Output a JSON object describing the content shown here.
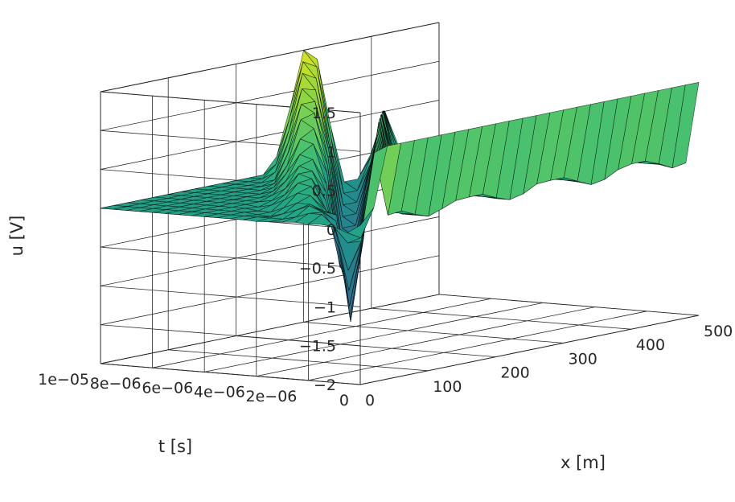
{
  "chart_data": {
    "type": "surface",
    "colormap": "viridis",
    "grid": true,
    "xlabel": "x [m]",
    "ylabel": "t [s]",
    "zlabel": "u [V]",
    "xlim": [
      0,
      500
    ],
    "ylim": [
      0,
      1e-05
    ],
    "zlim": [
      -2,
      1.5
    ],
    "x_ticks": [
      {
        "value": 0,
        "label": "0"
      },
      {
        "value": 100,
        "label": "100"
      },
      {
        "value": 200,
        "label": "200"
      },
      {
        "value": 300,
        "label": "300"
      },
      {
        "value": 400,
        "label": "400"
      },
      {
        "value": 500,
        "label": "500"
      }
    ],
    "y_ticks": [
      {
        "value": 0,
        "label": "0"
      },
      {
        "value": 2e-06,
        "label": "2e−06"
      },
      {
        "value": 4e-06,
        "label": "4e−06"
      },
      {
        "value": 6e-06,
        "label": "6e−06"
      },
      {
        "value": 8e-06,
        "label": "8e−06"
      },
      {
        "value": 1e-05,
        "label": "1e−05"
      }
    ],
    "z_ticks": [
      {
        "value": -2,
        "label": "−2"
      },
      {
        "value": -1.5,
        "label": "−1.5"
      },
      {
        "value": -1,
        "label": "−1"
      },
      {
        "value": -0.5,
        "label": "−0.5"
      },
      {
        "value": 0,
        "label": "0"
      },
      {
        "value": 0.5,
        "label": "0.5"
      },
      {
        "value": 1,
        "label": "1"
      },
      {
        "value": 1.5,
        "label": "1.5"
      }
    ],
    "surface": {
      "x": [
        0,
        20,
        40,
        60,
        80,
        100,
        120,
        140,
        160,
        180,
        200,
        220,
        240,
        260,
        280,
        300,
        320,
        340,
        360,
        380,
        400,
        420,
        440,
        460,
        480,
        500
      ],
      "t": [
        0,
        5e-07,
        1e-06,
        1.5e-06,
        2e-06,
        2.5e-06,
        3e-06,
        3.5e-06,
        4e-06,
        4.5e-06,
        5e-06,
        5.5e-06,
        6e-06,
        6.5e-06,
        7e-06,
        7.5e-06,
        8e-06,
        8.5e-06,
        9e-06,
        9.5e-06,
        1e-05
      ],
      "u_rows_by_t": [
        [
          0.05,
          0.24,
          1.0,
          1.0,
          1.0,
          1.0,
          1.0,
          1.0,
          1.0,
          1.0,
          1.0,
          1.0,
          1.0,
          1.0,
          1.0,
          1.0,
          1.0,
          1.0,
          1.0,
          1.0,
          1.0,
          1.0,
          1.0,
          1.0,
          1.0,
          1.0
        ],
        [
          -0.06,
          -0.16,
          0.9,
          0.06,
          0.08,
          0.0,
          -0.06,
          0.0,
          0.07,
          0.08,
          0.08,
          0.0,
          -0.06,
          -0.02,
          0.07,
          0.08,
          0.08,
          0.0,
          -0.08,
          -0.05,
          0.04,
          0.08,
          0.08,
          0.01,
          -0.08,
          -0.05
        ],
        [
          0.0,
          -0.24,
          -0.25,
          0.9,
          0.05,
          0.0,
          -0.06,
          0.0,
          0.05,
          0.06,
          0.06,
          0.0,
          -0.06,
          -0.02,
          0.05,
          0.06,
          0.06,
          0.0,
          -0.06,
          -0.05,
          0.04,
          0.06,
          0.06,
          0.0,
          -0.05,
          -0.05
        ],
        [
          0.02,
          -0.05,
          -0.64,
          -0.3,
          0.9,
          0.03,
          -0.06,
          0.0,
          0.05,
          0.04,
          0.04,
          0.0,
          -0.05,
          -0.02,
          0.04,
          0.04,
          0.04,
          0.0,
          -0.05,
          -0.04,
          0.04,
          0.04,
          0.04,
          0.0,
          -0.04,
          -0.04
        ],
        [
          0.01,
          0.1,
          -0.13,
          -0.95,
          -0.35,
          0.9,
          0.02,
          0.0,
          0.04,
          0.04,
          0.04,
          0.0,
          -0.04,
          -0.02,
          0.04,
          0.04,
          0.04,
          0.0,
          -0.04,
          -0.03,
          0.03,
          0.04,
          0.04,
          0.0,
          -0.03,
          -0.03
        ],
        [
          0.02,
          0.1,
          0.08,
          -0.07,
          -1.2,
          -0.4,
          0.9,
          0.02,
          0.04,
          0.03,
          0.03,
          0.0,
          -0.04,
          -0.02,
          0.03,
          0.03,
          0.03,
          0.0,
          -0.04,
          -0.03,
          0.02,
          0.03,
          0.03,
          0.0,
          -0.02,
          -0.02
        ],
        [
          0.01,
          0.04,
          0.15,
          0.04,
          -0.04,
          -1.4,
          -0.4,
          0.9,
          0.02,
          0.02,
          0.02,
          0.0,
          -0.03,
          -0.02,
          0.02,
          0.02,
          0.02,
          0.0,
          -0.03,
          -0.02,
          0.02,
          0.02,
          0.02,
          0.0,
          -0.02,
          -0.02
        ],
        [
          0.0,
          0.0,
          0.08,
          0.12,
          0.0,
          -0.15,
          -1.5,
          -0.35,
          0.9,
          0.02,
          0.02,
          0.0,
          -0.02,
          -0.01,
          0.02,
          0.02,
          0.02,
          0.0,
          -0.02,
          -0.02,
          0.02,
          0.02,
          0.02,
          0.0,
          -0.02,
          -0.02
        ],
        [
          -0.01,
          0.0,
          0.02,
          0.12,
          0.18,
          -0.02,
          -0.4,
          -1.5,
          -0.3,
          0.9,
          0.02,
          0.0,
          -0.02,
          -0.01,
          0.02,
          0.02,
          0.02,
          0.0,
          -0.02,
          -0.02,
          0.02,
          0.02,
          0.02,
          0.0,
          -0.02,
          -0.02
        ],
        [
          0.0,
          0.0,
          -0.03,
          0.05,
          0.2,
          0.25,
          -0.05,
          -0.6,
          -1.4,
          -0.25,
          0.9,
          0.0,
          -0.02,
          -0.01,
          0.02,
          0.02,
          0.02,
          0.0,
          -0.02,
          -0.02,
          0.02,
          0.02,
          0.02,
          0.0,
          -0.02,
          -0.02
        ],
        [
          0.0,
          0.0,
          -0.02,
          -0.02,
          0.1,
          0.28,
          0.3,
          0.0,
          -0.8,
          -1.3,
          -0.2,
          0.85,
          -0.02,
          -0.01,
          0.02,
          0.02,
          0.02,
          0.0,
          -0.02,
          -0.02,
          0.02,
          0.02,
          0.02,
          0.0,
          -0.02,
          -0.02
        ],
        [
          0.0,
          0.0,
          0.0,
          -0.02,
          0.02,
          0.12,
          0.35,
          0.35,
          0.05,
          -0.9,
          -1.2,
          -0.2,
          0.85,
          -0.01,
          0.02,
          0.02,
          0.02,
          0.0,
          -0.02,
          -0.02,
          0.02,
          0.02,
          0.02,
          0.0,
          -0.02,
          -0.02
        ],
        [
          0.0,
          0.0,
          0.0,
          0.0,
          -0.02,
          0.03,
          0.15,
          0.4,
          0.45,
          0.1,
          -1.0,
          -1.1,
          -0.15,
          0.8,
          0.02,
          0.02,
          0.02,
          0.0,
          -0.02,
          -0.02,
          0.02,
          0.02,
          0.02,
          0.0,
          -0.02,
          -0.02
        ],
        [
          0.0,
          0.0,
          0.0,
          0.0,
          0.0,
          0.0,
          0.05,
          0.2,
          0.5,
          0.6,
          0.2,
          -1.0,
          -1.0,
          -0.1,
          0.8,
          0.02,
          0.02,
          0.0,
          -0.02,
          -0.02,
          0.02,
          0.02,
          0.02,
          0.0,
          -0.02,
          -0.02
        ],
        [
          0.0,
          0.0,
          0.0,
          0.0,
          0.0,
          0.0,
          0.0,
          0.05,
          0.25,
          0.65,
          0.75,
          0.25,
          -0.9,
          -0.9,
          -0.1,
          0.75,
          0.02,
          0.0,
          -0.02,
          -0.02,
          0.02,
          0.02,
          0.02,
          0.0,
          -0.02,
          -0.02
        ],
        [
          0.0,
          0.0,
          0.0,
          0.0,
          0.0,
          0.0,
          0.0,
          0.0,
          0.05,
          0.3,
          0.85,
          0.9,
          0.3,
          -0.8,
          -0.8,
          -0.05,
          0.7,
          0.0,
          -0.02,
          -0.02,
          0.02,
          0.02,
          0.02,
          0.0,
          -0.02,
          -0.02
        ],
        [
          0.0,
          0.0,
          0.0,
          0.0,
          0.0,
          0.0,
          0.0,
          0.0,
          0.0,
          0.05,
          0.4,
          1.0,
          1.0,
          0.35,
          -0.7,
          -0.7,
          -0.05,
          0.7,
          -0.02,
          -0.02,
          0.02,
          0.02,
          0.02,
          0.0,
          -0.02,
          -0.02
        ],
        [
          0.0,
          0.0,
          0.0,
          0.0,
          0.0,
          0.0,
          0.0,
          0.0,
          0.0,
          0.0,
          0.05,
          0.5,
          1.15,
          1.1,
          0.35,
          -0.6,
          -0.6,
          -0.05,
          0.65,
          -0.02,
          0.02,
          0.02,
          0.02,
          0.0,
          -0.02,
          -0.02
        ],
        [
          0.0,
          0.0,
          0.0,
          0.0,
          0.0,
          0.0,
          0.0,
          0.0,
          0.0,
          0.0,
          0.0,
          0.1,
          0.6,
          1.3,
          1.2,
          0.35,
          -0.5,
          -0.5,
          -0.05,
          0.6,
          0.02,
          0.02,
          0.02,
          0.0,
          -0.02,
          -0.02
        ],
        [
          0.0,
          0.0,
          0.0,
          0.0,
          0.0,
          0.0,
          0.0,
          0.0,
          0.0,
          0.0,
          0.0,
          0.0,
          0.15,
          0.7,
          1.4,
          1.3,
          0.4,
          -0.4,
          -0.4,
          0.0,
          0.55,
          0.02,
          0.02,
          0.0,
          -0.02,
          -0.02
        ],
        [
          0.0,
          0.0,
          0.0,
          0.0,
          0.0,
          0.0,
          0.0,
          0.0,
          0.0,
          0.0,
          0.0,
          0.0,
          0.0,
          0.2,
          0.8,
          1.5,
          1.35,
          0.45,
          -0.3,
          -0.3,
          0.0,
          0.5,
          0.02,
          0.0,
          -0.02,
          -0.02
        ]
      ]
    }
  }
}
